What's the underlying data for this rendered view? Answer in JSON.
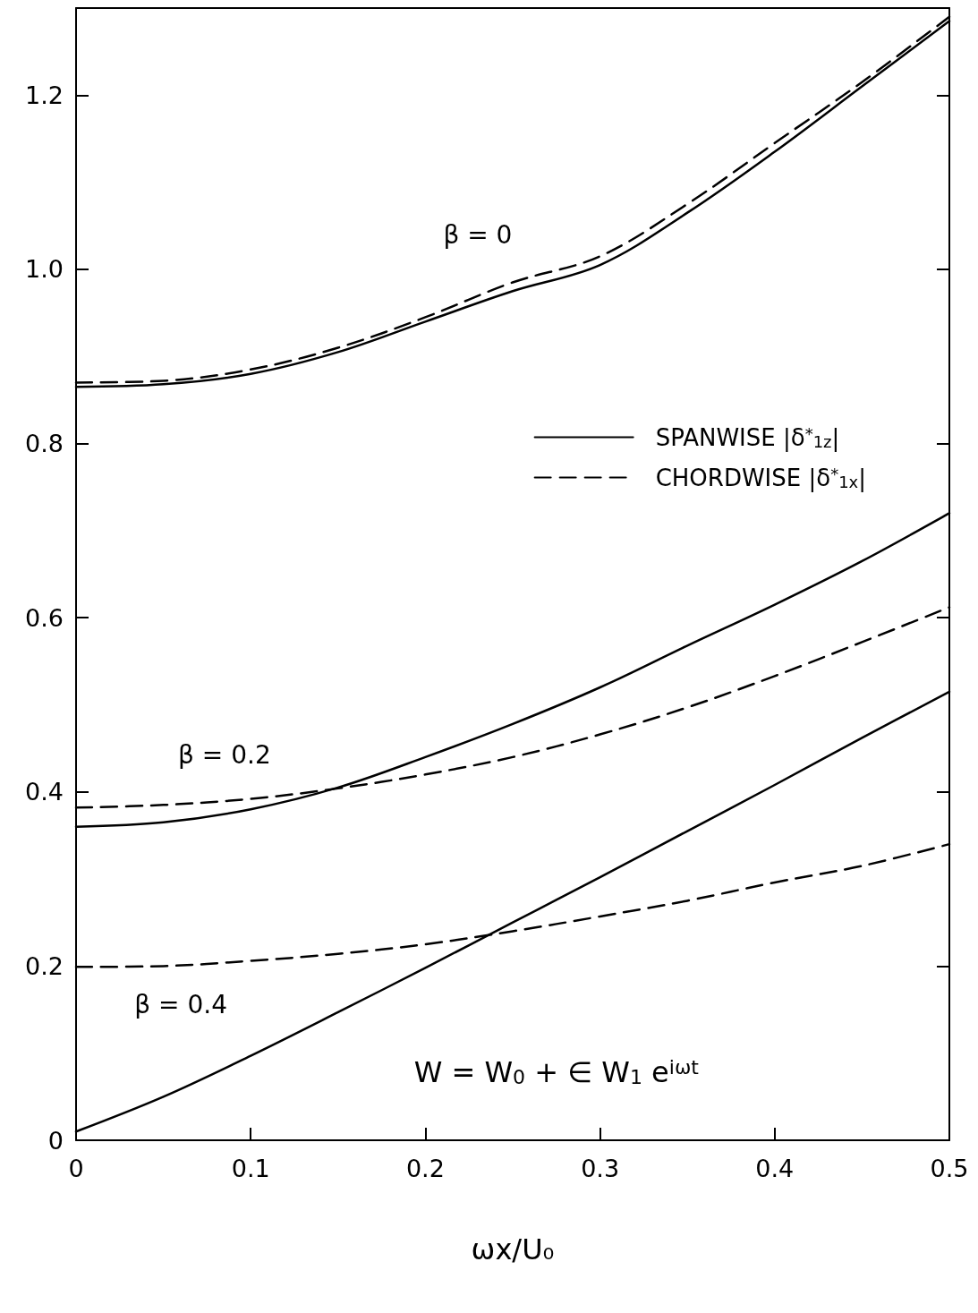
{
  "chart_data": {
    "type": "line",
    "xlabel": "ωx/U₀",
    "x": [
      0,
      0.05,
      0.1,
      0.15,
      0.2,
      0.25,
      0.3,
      0.35,
      0.4,
      0.45,
      0.5
    ],
    "series": [
      {
        "name": "SPANWISE |δ$^{*}$$_{1z}$|",
        "color": "#000000",
        "line_style": "solid",
        "values": [
          0.865,
          0.868,
          0.88,
          0.905,
          0.94,
          0.975,
          1.005,
          1.065,
          1.135,
          1.21,
          1.285
        ]
      },
      {
        "name": "CHORDWISE |δ$^{*}$$_{1x}$|",
        "color": "#000000",
        "line_style": "dashed",
        "values": [
          0.87,
          0.872,
          0.885,
          0.91,
          0.945,
          0.985,
          1.015,
          1.075,
          1.145,
          1.215,
          1.29
        ]
      },
      {
        "color": "#000000",
        "line_style": "solid",
        "values": [
          0.36,
          0.365,
          0.38,
          0.405,
          0.44,
          0.478,
          0.52,
          0.568,
          0.615,
          0.665,
          0.72
        ]
      },
      {
        "color": "#000000",
        "line_style": "dashed",
        "values": [
          0.382,
          0.385,
          0.392,
          0.404,
          0.42,
          0.44,
          0.466,
          0.497,
          0.533,
          0.572,
          0.612
        ]
      },
      {
        "color": "#000000",
        "line_style": "solid",
        "values": [
          0.01,
          0.05,
          0.097,
          0.147,
          0.198,
          0.25,
          0.302,
          0.355,
          0.408,
          0.462,
          0.515
        ]
      },
      {
        "color": "#000000",
        "line_style": "dashed",
        "values": [
          0.199,
          0.2,
          0.206,
          0.214,
          0.225,
          0.24,
          0.257,
          0.275,
          0.296,
          0.315,
          0.34
        ]
      }
    ],
    "xlim": [
      0,
      0.5
    ],
    "xticks": [
      0,
      0.1,
      0.2,
      0.3,
      0.4,
      0.5
    ],
    "ylim": [
      0,
      1.3
    ],
    "yticks": [
      0,
      0.2,
      0.4,
      0.6,
      0.8,
      {
        "value": 1,
        "label": "1.0"
      },
      1.2
    ],
    "annotations": [
      "β = 0",
      "β = 0.2",
      "β = 0.4",
      "W = W$_{0}$ + ∈ W$_{1}$ e$^{iωt}$"
    ],
    "marker": "none",
    "grid": false,
    "legend": "right"
  }
}
